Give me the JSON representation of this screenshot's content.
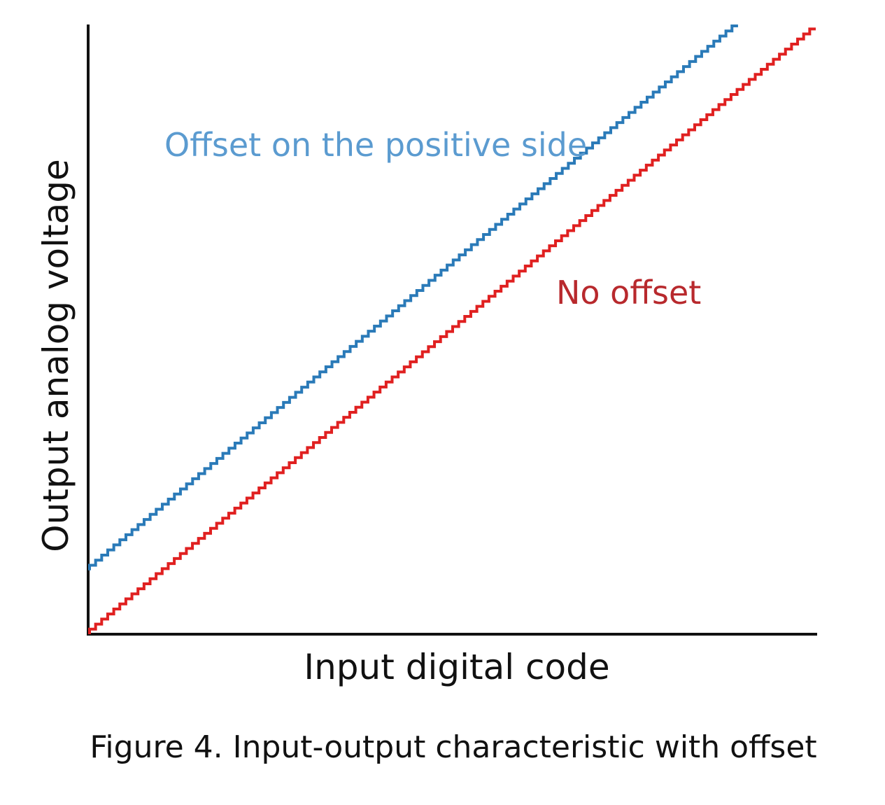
{
  "chart_data": {
    "type": "line",
    "xlabel": "Input digital code",
    "ylabel": "Output analog voltage",
    "caption": "Figure 4. Input-output characteristic with offset",
    "grid": false,
    "step_count": 120,
    "series": [
      {
        "name": "Offset on the positive side",
        "color": "#2a7ab8",
        "label_color": "#5b9bd0",
        "style": "staircase",
        "start": [
          0,
          0.105
        ],
        "end": [
          0.893,
          1.0
        ]
      },
      {
        "name": "No offset",
        "color": "#e02020",
        "label_color": "#b8292d",
        "style": "staircase",
        "start": [
          0,
          0.0
        ],
        "end": [
          1.0,
          0.995
        ]
      }
    ]
  }
}
